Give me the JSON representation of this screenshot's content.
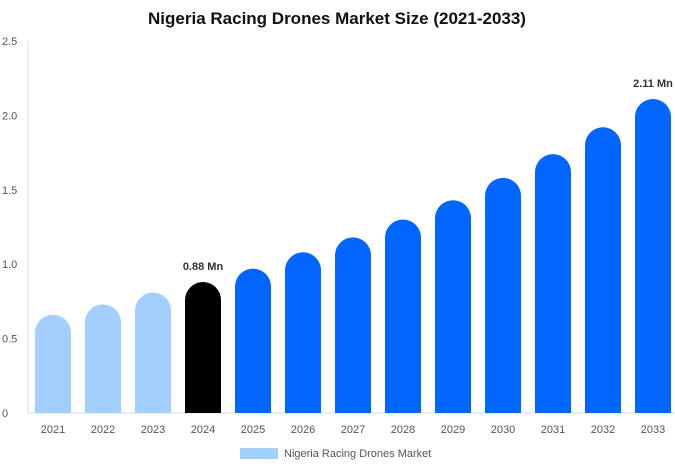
{
  "chart_data": {
    "type": "bar",
    "title": "Nigeria Racing Drones Market Size (2021-2033)",
    "xlabel": "",
    "ylabel": "",
    "ylim": [
      0,
      2.5
    ],
    "yticks": [
      "0",
      "0.5",
      "1.0",
      "1.5",
      "2.0",
      "2.5"
    ],
    "categories": [
      "2021",
      "2022",
      "2023",
      "2024",
      "2025",
      "2026",
      "2027",
      "2028",
      "2029",
      "2030",
      "2031",
      "2032",
      "2033"
    ],
    "series": [
      {
        "name": "Nigeria Racing Drones Market",
        "values": [
          0.66,
          0.73,
          0.81,
          0.88,
          0.97,
          1.08,
          1.18,
          1.3,
          1.43,
          1.58,
          1.74,
          1.92,
          2.11
        ]
      }
    ],
    "data_labels": [
      {
        "index": 3,
        "text": "0.88 Mn"
      },
      {
        "index": 12,
        "text": "2.11 Mn"
      }
    ],
    "colors": {
      "historic": "#a3cffe",
      "base": "#000000",
      "forecast": "#0066ff"
    },
    "legend": "bottom",
    "grid": false
  }
}
